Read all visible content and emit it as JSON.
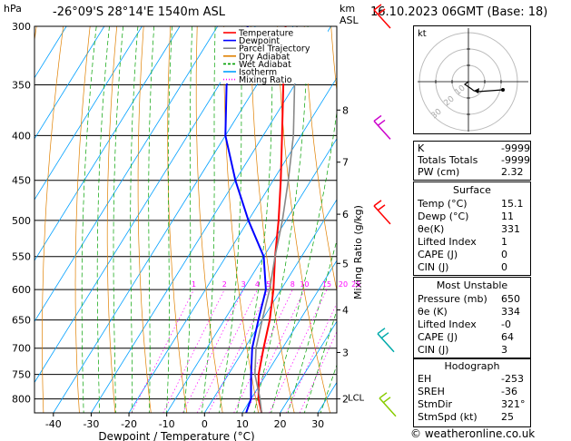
{
  "header": {
    "hpa_unit": "hPa",
    "location": "-26°09'S 28°14'E 1540m ASL",
    "km_unit": "km",
    "asl": "ASL",
    "datetime": "16.10.2023 06GMT (Base: 18)"
  },
  "legend": [
    {
      "label": "Temperature",
      "color": "#ff0000"
    },
    {
      "label": "Dewpoint",
      "color": "#0000ff"
    },
    {
      "label": "Parcel Trajectory",
      "color": "#888888"
    },
    {
      "label": "Dry Adiabat",
      "color": "#e08000"
    },
    {
      "label": "Wet Adiabat",
      "color": "#00a000"
    },
    {
      "label": "Isotherm",
      "color": "#00a0ff"
    },
    {
      "label": "Mixing Ratio",
      "color": "#ff00ff"
    }
  ],
  "chart_data": {
    "type": "line",
    "xlabel": "Dewpoint / Temperature (°C)",
    "ylabel_right": "Mixing Ratio (g/kg)",
    "x_ticks": [
      -40,
      -30,
      -20,
      -10,
      0,
      10,
      20,
      30
    ],
    "pressure_levels": [
      300,
      350,
      400,
      450,
      500,
      550,
      600,
      650,
      700,
      750,
      800
    ],
    "xlim": [
      -45,
      35
    ],
    "ylim": [
      830,
      300
    ],
    "height_km": [
      {
        "km": "8",
        "p": 374
      },
      {
        "km": "7",
        "p": 429
      },
      {
        "km": "6",
        "p": 492
      },
      {
        "km": "5",
        "p": 560
      },
      {
        "km": "4",
        "p": 633
      },
      {
        "km": "3",
        "p": 708
      },
      {
        "km": "2",
        "p": 800
      }
    ],
    "lcl": {
      "label": "LCL",
      "p": 796
    },
    "mixing_ratio_labels": [
      "1",
      "2",
      "3",
      "4",
      "5",
      "8",
      "10",
      "15",
      "20",
      "25"
    ],
    "mixing_ratio_values": [
      1,
      2,
      3,
      4,
      5,
      8,
      10,
      15,
      20,
      25
    ],
    "series": [
      {
        "name": "Temperature",
        "color": "#ff0000",
        "points": [
          [
            15.1,
            830
          ],
          [
            12,
            800
          ],
          [
            8,
            750
          ],
          [
            5,
            700
          ],
          [
            2,
            650
          ],
          [
            -2,
            600
          ],
          [
            -7,
            550
          ],
          [
            -12,
            500
          ],
          [
            -18,
            450
          ],
          [
            -25,
            400
          ],
          [
            -33,
            350
          ],
          [
            -42,
            300
          ]
        ]
      },
      {
        "name": "Dewpoint",
        "color": "#0000ff",
        "points": [
          [
            11,
            830
          ],
          [
            10,
            800
          ],
          [
            6,
            750
          ],
          [
            2,
            700
          ],
          [
            -1,
            650
          ],
          [
            -4,
            600
          ],
          [
            -10,
            550
          ],
          [
            -20,
            500
          ],
          [
            -30,
            450
          ],
          [
            -40,
            400
          ],
          [
            -48,
            350
          ],
          [
            -52,
            300
          ]
        ]
      },
      {
        "name": "Parcel Trajectory",
        "color": "#888888",
        "points": [
          [
            15.1,
            830
          ],
          [
            12,
            796
          ],
          [
            7,
            750
          ],
          [
            3,
            700
          ],
          [
            0,
            650
          ],
          [
            -3,
            600
          ],
          [
            -7,
            550
          ],
          [
            -11,
            500
          ],
          [
            -16,
            450
          ],
          [
            -22,
            400
          ],
          [
            -30,
            350
          ],
          [
            -39,
            300
          ]
        ]
      }
    ]
  },
  "hodograph": {
    "unit": "kt",
    "ring_labels": [
      "10",
      "20",
      "30"
    ]
  },
  "indices": [
    {
      "label": "K",
      "value": "-9999"
    },
    {
      "label": "Totals Totals",
      "value": "-9999"
    },
    {
      "label": "PW (cm)",
      "value": "2.32"
    }
  ],
  "surface": {
    "title": "Surface",
    "rows": [
      {
        "label": "Temp (°C)",
        "value": "15.1"
      },
      {
        "label": "Dewp (°C)",
        "value": "11"
      },
      {
        "label": "θe(K)",
        "value": "331"
      },
      {
        "label": "Lifted Index",
        "value": "1"
      },
      {
        "label": "CAPE (J)",
        "value": "0"
      },
      {
        "label": "CIN (J)",
        "value": "0"
      }
    ]
  },
  "most_unstable": {
    "title": "Most Unstable",
    "rows": [
      {
        "label": "Pressure (mb)",
        "value": "650"
      },
      {
        "label": "θe (K)",
        "value": "334"
      },
      {
        "label": "Lifted Index",
        "value": "-0"
      },
      {
        "label": "CAPE (J)",
        "value": "64"
      },
      {
        "label": "CIN (J)",
        "value": "3"
      }
    ]
  },
  "hodograph_stats": {
    "title": "Hodograph",
    "rows": [
      {
        "label": "EH",
        "value": "-253"
      },
      {
        "label": "SREH",
        "value": "-36"
      },
      {
        "label": "StmDir",
        "value": "321°"
      },
      {
        "label": "StmSpd (kt)",
        "value": "25"
      }
    ]
  },
  "footer": "© weatheronline.co.uk"
}
